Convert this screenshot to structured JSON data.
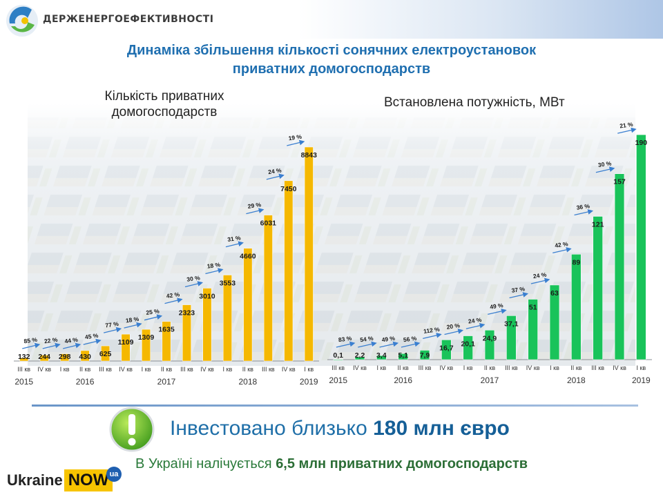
{
  "header": {
    "org_name": "ДЕРЖЕНЕРГОЕФЕКТИВНОСТІ",
    "title_line1": "Динаміка збільшення кількості сонячних електроустановок",
    "title_line2": "приватних домогосподарств"
  },
  "colors": {
    "left_bar": "#f5b800",
    "right_bar": "#19c35a",
    "title": "#1f6fb0",
    "arrow": "#3a7fd0"
  },
  "chart_data": [
    {
      "type": "bar",
      "title": "Кількість приватних домогосподарств",
      "categories": [
        "III кв",
        "IV кв",
        "I кв",
        "II кв",
        "III кв",
        "IV кв",
        "I кв",
        "II кв",
        "III кв",
        "IV кв",
        "I кв",
        "II кв",
        "III кв",
        "IV кв",
        "I кв"
      ],
      "values": [
        132,
        244,
        298,
        430,
        625,
        1109,
        1309,
        1635,
        2323,
        3010,
        3553,
        4660,
        6031,
        7450,
        8843
      ],
      "value_labels": [
        "132",
        "244",
        "298",
        "430",
        "625",
        "1109",
        "1309",
        "1635",
        "2323",
        "3010",
        "3553",
        "4660",
        "6031",
        "7450",
        "8843"
      ],
      "growth_labels": [
        "85 %",
        "22 %",
        "44 %",
        "45 %",
        "77 %",
        "18 %",
        "25 %",
        "42 %",
        "30 %",
        "18 %",
        "31 %",
        "29 %",
        "24 %",
        "19 %"
      ],
      "years": [
        {
          "label": "2015",
          "category_index": 0
        },
        {
          "label": "2016",
          "category_index": 3
        },
        {
          "label": "2017",
          "category_index": 7
        },
        {
          "label": "2018",
          "category_index": 11
        },
        {
          "label": "2019",
          "category_index": 14
        }
      ],
      "ylim": [
        0,
        9500
      ]
    },
    {
      "type": "bar",
      "title": "Встановлена потужність, МВт",
      "categories": [
        "III кв",
        "IV кв",
        "I кв",
        "II кв",
        "III кв",
        "IV кв",
        "I кв",
        "II кв",
        "III кв",
        "IV кв",
        "I кв",
        "II кв",
        "III кв",
        "IV кв",
        "I кв"
      ],
      "values": [
        0.1,
        2.2,
        3.4,
        5.1,
        7.9,
        16.7,
        20.1,
        24.9,
        37.1,
        51,
        63,
        89,
        121,
        157,
        190
      ],
      "value_labels": [
        "0,1",
        "2,2",
        "3,4",
        "5,1",
        "7,9",
        "16,7",
        "20,1",
        "24,9",
        "37,1",
        "51",
        "63",
        "89",
        "121",
        "157",
        "190"
      ],
      "growth_labels": [
        "83 %",
        "54 %",
        "49 %",
        "56 %",
        "112 %",
        "20 %",
        "24 %",
        "49 %",
        "37 %",
        "24 %",
        "42 %",
        "36 %",
        "30 %",
        "21 %"
      ],
      "years": [
        {
          "label": "2015",
          "category_index": 0
        },
        {
          "label": "2016",
          "category_index": 3
        },
        {
          "label": "2017",
          "category_index": 7
        },
        {
          "label": "2018",
          "category_index": 11
        },
        {
          "label": "2019",
          "category_index": 14
        }
      ],
      "ylim": [
        0,
        200
      ]
    }
  ],
  "footer": {
    "invest_prefix": "Інвестовано близько ",
    "invest_amount": "180 млн євро",
    "households_prefix": "В Україні налічується ",
    "households_amount": "6,5 млн приватних домогосподарств",
    "brand_word": "Ukraine",
    "brand_box": "NOW",
    "brand_badge": "ua"
  }
}
